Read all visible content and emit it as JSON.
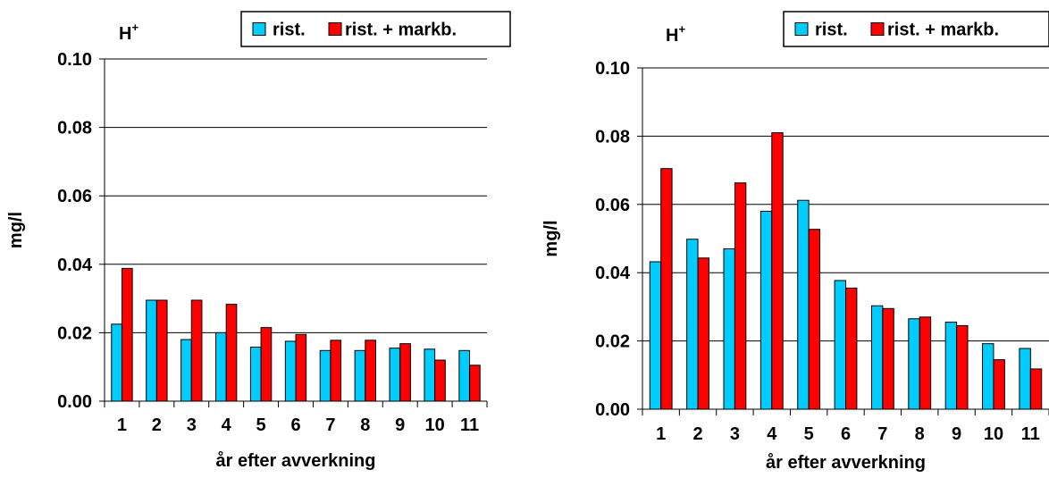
{
  "chart_data": [
    {
      "type": "bar",
      "title": "H",
      "title_sup": "+",
      "ylabel": "mg/l",
      "xlabel": "år efter avverkning",
      "categories": [
        "1",
        "2",
        "3",
        "4",
        "5",
        "6",
        "7",
        "8",
        "9",
        "10",
        "11"
      ],
      "ylim": [
        0,
        0.1
      ],
      "yticks": [
        "0.00",
        "0.02",
        "0.04",
        "0.06",
        "0.08",
        "0.10"
      ],
      "ytick_values": [
        0,
        0.02,
        0.04,
        0.06,
        0.08,
        0.1
      ],
      "grid": true,
      "legend_position": "top-right",
      "series": [
        {
          "name": "rist.",
          "color": "#00CCFF",
          "values": [
            0.0225,
            0.0295,
            0.018,
            0.02,
            0.0158,
            0.0175,
            0.0148,
            0.0148,
            0.0155,
            0.0152,
            0.0148
          ]
        },
        {
          "name": "rist. + markb.",
          "color": "#FF0000",
          "values": [
            0.0388,
            0.0295,
            0.0295,
            0.0283,
            0.0215,
            0.0195,
            0.0178,
            0.0178,
            0.0168,
            0.012,
            0.0105
          ]
        }
      ]
    },
    {
      "type": "bar",
      "title": "H",
      "title_sup": "+",
      "ylabel": "mg/l",
      "xlabel": "år efter avverkning",
      "categories": [
        "1",
        "2",
        "3",
        "4",
        "5",
        "6",
        "7",
        "8",
        "9",
        "10",
        "11"
      ],
      "ylim": [
        0,
        0.1
      ],
      "yticks": [
        "0.00",
        "0.02",
        "0.04",
        "0.06",
        "0.08",
        "0.10"
      ],
      "ytick_values": [
        0,
        0.02,
        0.04,
        0.06,
        0.08,
        0.1
      ],
      "grid": true,
      "legend_position": "top-right",
      "series": [
        {
          "name": "rist.",
          "color": "#00CCFF",
          "values": [
            0.0432,
            0.0498,
            0.047,
            0.058,
            0.0612,
            0.0377,
            0.0303,
            0.0265,
            0.0255,
            0.0192,
            0.0178
          ]
        },
        {
          "name": "rist. + markb.",
          "color": "#FF0000",
          "values": [
            0.0705,
            0.0443,
            0.0663,
            0.081,
            0.0527,
            0.0355,
            0.0295,
            0.027,
            0.0245,
            0.0145,
            0.0118
          ]
        }
      ]
    }
  ]
}
